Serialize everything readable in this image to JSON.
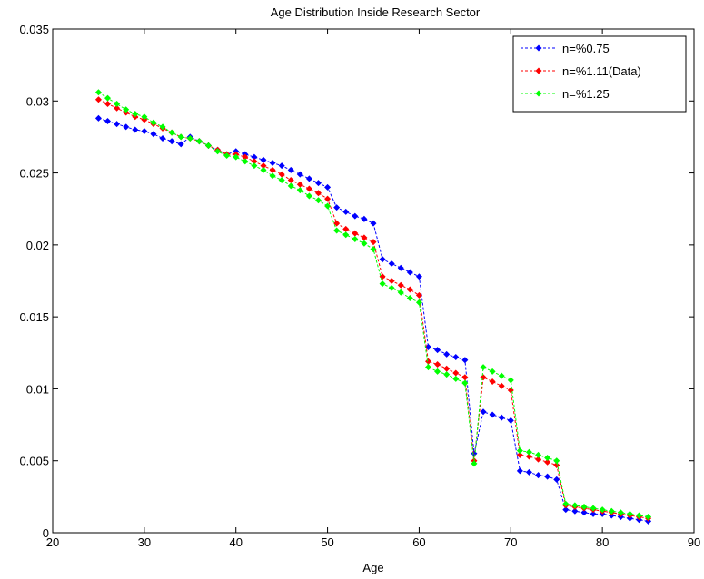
{
  "chart_data": {
    "type": "line",
    "title": "Age Distribution Inside Research Sector",
    "xlabel": "Age",
    "ylabel": "",
    "xlim": [
      20,
      90
    ],
    "ylim": [
      0,
      0.035
    ],
    "xticks": [
      "20",
      "30",
      "40",
      "50",
      "60",
      "70",
      "80",
      "90"
    ],
    "yticks": [
      "0",
      "0.005",
      "0.01",
      "0.015",
      "0.02",
      "0.025",
      "0.03",
      "0.035"
    ],
    "grid": false,
    "legend_position": "top-right",
    "x": [
      25,
      26,
      27,
      28,
      29,
      30,
      31,
      32,
      33,
      34,
      35,
      36,
      37,
      38,
      39,
      40,
      41,
      42,
      43,
      44,
      45,
      46,
      47,
      48,
      49,
      50,
      51,
      52,
      53,
      54,
      55,
      56,
      57,
      58,
      59,
      60,
      61,
      62,
      63,
      64,
      65,
      66,
      67,
      68,
      69,
      70,
      71,
      72,
      73,
      74,
      75,
      76,
      77,
      78,
      79,
      80,
      81,
      82,
      83,
      84,
      85
    ],
    "series": [
      {
        "name": "n=%0.75",
        "color": "#0000ff",
        "values": [
          0.0288,
          0.0286,
          0.0284,
          0.0282,
          0.028,
          0.0279,
          0.0277,
          0.0274,
          0.0272,
          0.027,
          0.0275,
          0.0272,
          0.0269,
          0.0266,
          0.0263,
          0.0265,
          0.0263,
          0.0261,
          0.0259,
          0.0257,
          0.0255,
          0.0252,
          0.0249,
          0.0246,
          0.0243,
          0.024,
          0.0226,
          0.0223,
          0.022,
          0.0218,
          0.0215,
          0.019,
          0.0187,
          0.0184,
          0.0181,
          0.0178,
          0.0129,
          0.0127,
          0.0124,
          0.0122,
          0.012,
          0.0055,
          0.0084,
          0.0082,
          0.008,
          0.0078,
          0.0043,
          0.0042,
          0.004,
          0.0039,
          0.0037,
          0.0016,
          0.0015,
          0.0014,
          0.0013,
          0.0013,
          0.0012,
          0.0011,
          0.001,
          0.0009,
          0.0008
        ]
      },
      {
        "name": "n=%1.11(Data)",
        "color": "#ff0000",
        "values": [
          0.0301,
          0.0298,
          0.0295,
          0.0292,
          0.0289,
          0.0287,
          0.0284,
          0.0281,
          0.0278,
          0.0275,
          0.0274,
          0.0272,
          0.0269,
          0.0266,
          0.0263,
          0.0263,
          0.0261,
          0.0258,
          0.0255,
          0.0252,
          0.0249,
          0.0245,
          0.0242,
          0.0239,
          0.0236,
          0.0232,
          0.0215,
          0.0211,
          0.0208,
          0.0205,
          0.0202,
          0.0178,
          0.0175,
          0.0172,
          0.0169,
          0.0165,
          0.0119,
          0.0117,
          0.0114,
          0.0111,
          0.0108,
          0.005,
          0.0108,
          0.0105,
          0.0102,
          0.0099,
          0.0054,
          0.0053,
          0.0051,
          0.0049,
          0.0047,
          0.0019,
          0.0018,
          0.0017,
          0.0016,
          0.0015,
          0.0014,
          0.0013,
          0.0012,
          0.0011,
          0.001
        ]
      },
      {
        "name": "n=%1.25",
        "color": "#00ff00",
        "values": [
          0.0306,
          0.0302,
          0.0298,
          0.0294,
          0.0291,
          0.0289,
          0.0285,
          0.0282,
          0.0278,
          0.0275,
          0.0274,
          0.0272,
          0.0269,
          0.0265,
          0.0262,
          0.0261,
          0.0258,
          0.0255,
          0.0252,
          0.0248,
          0.0245,
          0.0241,
          0.0238,
          0.0234,
          0.0231,
          0.0227,
          0.021,
          0.0207,
          0.0204,
          0.0201,
          0.0197,
          0.0173,
          0.017,
          0.0167,
          0.0163,
          0.016,
          0.0115,
          0.0112,
          0.011,
          0.0107,
          0.0104,
          0.0048,
          0.0115,
          0.0112,
          0.0109,
          0.0106,
          0.0057,
          0.0056,
          0.0054,
          0.0052,
          0.005,
          0.002,
          0.0019,
          0.0018,
          0.0017,
          0.0016,
          0.0015,
          0.0014,
          0.0013,
          0.0012,
          0.0011
        ]
      }
    ]
  }
}
